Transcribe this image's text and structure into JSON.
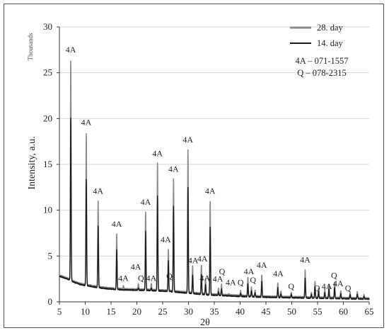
{
  "chart_data": {
    "type": "line",
    "ylabel": "Intensity, a.u.",
    "xlabel": "2θ",
    "yunit_label": "Thousands",
    "xlim": [
      5,
      65
    ],
    "ylim": [
      0,
      30
    ],
    "xticks": [
      5,
      10,
      15,
      20,
      25,
      30,
      35,
      40,
      45,
      50,
      55,
      60,
      65
    ],
    "yticks": [
      0,
      5,
      10,
      15,
      20,
      25,
      30
    ],
    "legend_position": "top-right",
    "references": [
      "4A – 071-1557",
      "Q – 078-2315"
    ],
    "series": [
      {
        "name": "28. day",
        "color": "#8a8a8a",
        "baseline": [
          [
            5,
            2.9
          ],
          [
            6,
            2.7
          ],
          [
            7,
            2.5
          ],
          [
            8,
            2.2
          ],
          [
            9,
            2.0
          ],
          [
            10,
            1.9
          ],
          [
            12,
            1.7
          ],
          [
            14,
            1.55
          ],
          [
            16,
            1.45
          ],
          [
            18,
            1.4
          ],
          [
            20,
            1.38
          ],
          [
            22,
            1.35
          ],
          [
            24,
            1.3
          ],
          [
            26,
            1.25
          ],
          [
            28,
            1.15
          ],
          [
            30,
            1.05
          ],
          [
            32,
            0.95
          ],
          [
            34,
            0.85
          ],
          [
            36,
            0.8
          ],
          [
            40,
            0.7
          ],
          [
            45,
            0.6
          ],
          [
            50,
            0.55
          ],
          [
            55,
            0.5
          ],
          [
            60,
            0.45
          ],
          [
            65,
            0.4
          ]
        ],
        "peaks": [
          [
            7.2,
            26.3
          ],
          [
            10.2,
            18.4
          ],
          [
            12.5,
            11.0
          ],
          [
            16.1,
            7.4
          ],
          [
            17.4,
            1.8
          ],
          [
            20.3,
            2.0
          ],
          [
            21.7,
            9.8
          ],
          [
            22.8,
            2.0
          ],
          [
            24.0,
            15.1
          ],
          [
            26.1,
            5.7
          ],
          [
            27.1,
            13.4
          ],
          [
            29.9,
            16.6
          ],
          [
            30.8,
            3.9
          ],
          [
            32.5,
            4.0
          ],
          [
            33.3,
            2.5
          ],
          [
            34.2,
            11.0
          ],
          [
            35.8,
            1.5
          ],
          [
            36.4,
            1.9
          ],
          [
            37.8,
            0.9
          ],
          [
            40.1,
            1.2
          ],
          [
            41.5,
            2.7
          ],
          [
            42.2,
            1.6
          ],
          [
            42.9,
            1.3
          ],
          [
            44.2,
            2.9
          ],
          [
            47.3,
            2.0
          ],
          [
            47.9,
            1.2
          ],
          [
            49.9,
            1.0
          ],
          [
            52.6,
            3.5
          ],
          [
            53.8,
            1.0
          ],
          [
            54.5,
            2.2
          ],
          [
            55.2,
            1.5
          ],
          [
            56.4,
            1.4
          ],
          [
            57.2,
            1.9
          ],
          [
            58.3,
            2.2
          ],
          [
            59.5,
            1.2
          ],
          [
            61.3,
            1.0
          ],
          [
            62.7,
            1.1
          ],
          [
            64.0,
            0.8
          ]
        ]
      },
      {
        "name": "14. day",
        "color": "#1a1a1a",
        "baseline": [
          [
            5,
            2.8
          ],
          [
            6,
            2.6
          ],
          [
            7,
            2.4
          ],
          [
            8,
            2.1
          ],
          [
            9,
            1.9
          ],
          [
            10,
            1.8
          ],
          [
            12,
            1.6
          ],
          [
            14,
            1.45
          ],
          [
            16,
            1.35
          ],
          [
            18,
            1.3
          ],
          [
            20,
            1.28
          ],
          [
            22,
            1.25
          ],
          [
            24,
            1.2
          ],
          [
            26,
            1.15
          ],
          [
            28,
            1.05
          ],
          [
            30,
            0.95
          ],
          [
            32,
            0.85
          ],
          [
            34,
            0.75
          ],
          [
            36,
            0.7
          ],
          [
            40,
            0.6
          ],
          [
            45,
            0.5
          ],
          [
            50,
            0.45
          ],
          [
            55,
            0.4
          ],
          [
            60,
            0.35
          ],
          [
            65,
            0.3
          ]
        ],
        "peaks": [
          [
            7.2,
            20.1
          ],
          [
            10.2,
            13.4
          ],
          [
            12.5,
            8.3
          ],
          [
            16.1,
            5.7
          ],
          [
            17.4,
            1.3
          ],
          [
            20.3,
            1.5
          ],
          [
            21.7,
            7.7
          ],
          [
            22.8,
            1.5
          ],
          [
            24.0,
            11.5
          ],
          [
            26.1,
            4.5
          ],
          [
            27.1,
            10.4
          ],
          [
            29.9,
            12.5
          ],
          [
            30.8,
            2.9
          ],
          [
            32.5,
            3.0
          ],
          [
            33.3,
            1.9
          ],
          [
            34.2,
            8.2
          ],
          [
            35.8,
            1.1
          ],
          [
            36.4,
            1.4
          ],
          [
            37.8,
            0.7
          ],
          [
            40.1,
            0.9
          ],
          [
            41.5,
            2.0
          ],
          [
            42.2,
            1.2
          ],
          [
            42.9,
            1.0
          ],
          [
            44.2,
            2.2
          ],
          [
            47.3,
            1.5
          ],
          [
            47.9,
            0.9
          ],
          [
            49.9,
            0.8
          ],
          [
            52.6,
            2.6
          ],
          [
            53.8,
            0.8
          ],
          [
            54.5,
            1.6
          ],
          [
            55.2,
            1.1
          ],
          [
            56.4,
            1.0
          ],
          [
            57.2,
            1.4
          ],
          [
            58.3,
            1.6
          ],
          [
            59.5,
            0.9
          ],
          [
            61.3,
            0.8
          ],
          [
            62.7,
            0.8
          ],
          [
            64.0,
            0.6
          ]
        ]
      }
    ],
    "annotations": [
      {
        "text": "4A",
        "x": 7.2,
        "y": 27.2
      },
      {
        "text": "4A",
        "x": 10.2,
        "y": 19.3
      },
      {
        "text": "4A",
        "x": 12.5,
        "y": 11.8
      },
      {
        "text": "4A",
        "x": 16.1,
        "y": 8.2
      },
      {
        "text": "4A",
        "x": 17.4,
        "y": 2.3
      },
      {
        "text": "4A",
        "x": 19.8,
        "y": 3.5
      },
      {
        "text": "Q",
        "x": 20.8,
        "y": 2.3
      },
      {
        "text": "4A",
        "x": 21.7,
        "y": 10.6
      },
      {
        "text": "4A",
        "x": 22.8,
        "y": 2.3
      },
      {
        "text": "4A",
        "x": 24.0,
        "y": 15.9
      },
      {
        "text": "4A",
        "x": 25.6,
        "y": 6.5
      },
      {
        "text": "Q",
        "x": 26.3,
        "y": 2.5
      },
      {
        "text": "4A",
        "x": 27.1,
        "y": 14.2
      },
      {
        "text": "4A",
        "x": 29.9,
        "y": 17.4
      },
      {
        "text": "4A",
        "x": 30.9,
        "y": 4.2
      },
      {
        "text": "4A",
        "x": 32.7,
        "y": 4.4
      },
      {
        "text": "4A",
        "x": 33.2,
        "y": 2.3
      },
      {
        "text": "4A",
        "x": 34.2,
        "y": 11.8
      },
      {
        "text": "4A",
        "x": 35.7,
        "y": 2.2
      },
      {
        "text": "Q",
        "x": 36.5,
        "y": 3.0
      },
      {
        "text": "4A",
        "x": 38.2,
        "y": 1.8
      },
      {
        "text": "Q",
        "x": 40.1,
        "y": 1.8
      },
      {
        "text": "4A",
        "x": 41.7,
        "y": 3.0
      },
      {
        "text": "Q",
        "x": 42.5,
        "y": 2.1
      },
      {
        "text": "4A",
        "x": 44.2,
        "y": 3.7
      },
      {
        "text": "4A",
        "x": 47.4,
        "y": 2.8
      },
      {
        "text": "Q",
        "x": 49.9,
        "y": 1.4
      },
      {
        "text": "4A",
        "x": 52.6,
        "y": 4.3
      },
      {
        "text": "Q",
        "x": 54.9,
        "y": 1.2
      },
      {
        "text": "4A",
        "x": 56.8,
        "y": 1.4
      },
      {
        "text": "Q",
        "x": 58.2,
        "y": 2.6
      },
      {
        "text": "4A",
        "x": 59.0,
        "y": 1.7
      },
      {
        "text": "Q",
        "x": 60.9,
        "y": 1.2
      }
    ]
  }
}
